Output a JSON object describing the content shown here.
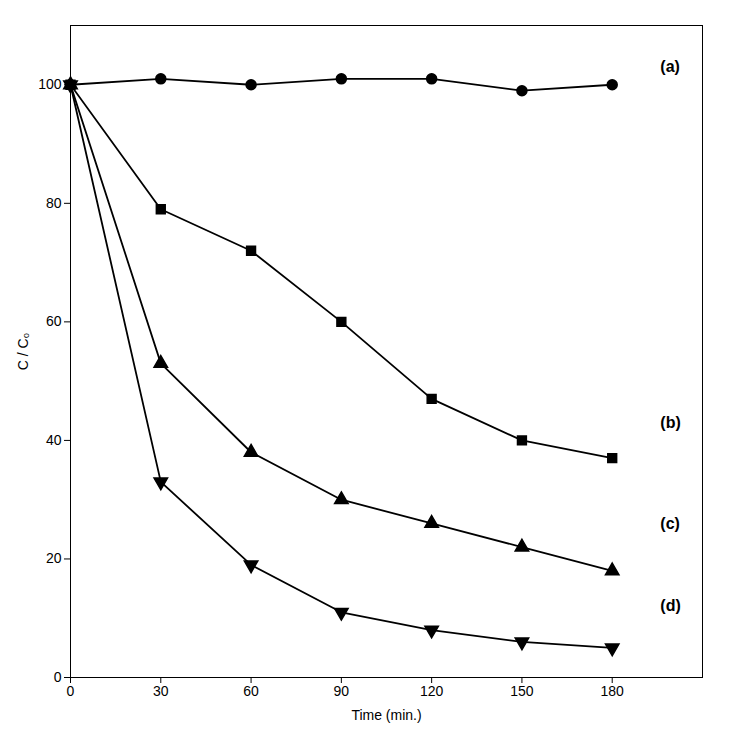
{
  "chart_data": {
    "type": "line",
    "x": [
      0,
      30,
      60,
      90,
      120,
      150,
      180
    ],
    "series": [
      {
        "values": [
          100,
          101,
          100,
          101,
          101,
          99,
          100
        ],
        "marker": "circle"
      },
      {
        "values": [
          100,
          79,
          72,
          60,
          47,
          40,
          37
        ],
        "marker": "square"
      },
      {
        "values": [
          100,
          53,
          38,
          30,
          26,
          22,
          18
        ],
        "marker": "triangle-up"
      },
      {
        "values": [
          100,
          33,
          19,
          11,
          8,
          6,
          5
        ],
        "marker": "triangle-down"
      }
    ],
    "color": "#000000",
    "xlabel": "Time (min.)",
    "ylabel": "C / C₀",
    "xlim": [
      0,
      210
    ],
    "ylim": [
      0,
      110
    ],
    "xticks": [
      0,
      30,
      60,
      90,
      120,
      150,
      180
    ],
    "yticks": [
      0,
      20,
      40,
      60,
      80,
      100
    ],
    "grid": false,
    "annotations": [
      {
        "text": "(a)",
        "x": 196,
        "y": 103
      },
      {
        "text": "(b)",
        "x": 196,
        "y": 43
      },
      {
        "text": "(c)",
        "x": 196,
        "y": 26
      },
      {
        "text": "(d)",
        "x": 196,
        "y": 12
      }
    ]
  }
}
